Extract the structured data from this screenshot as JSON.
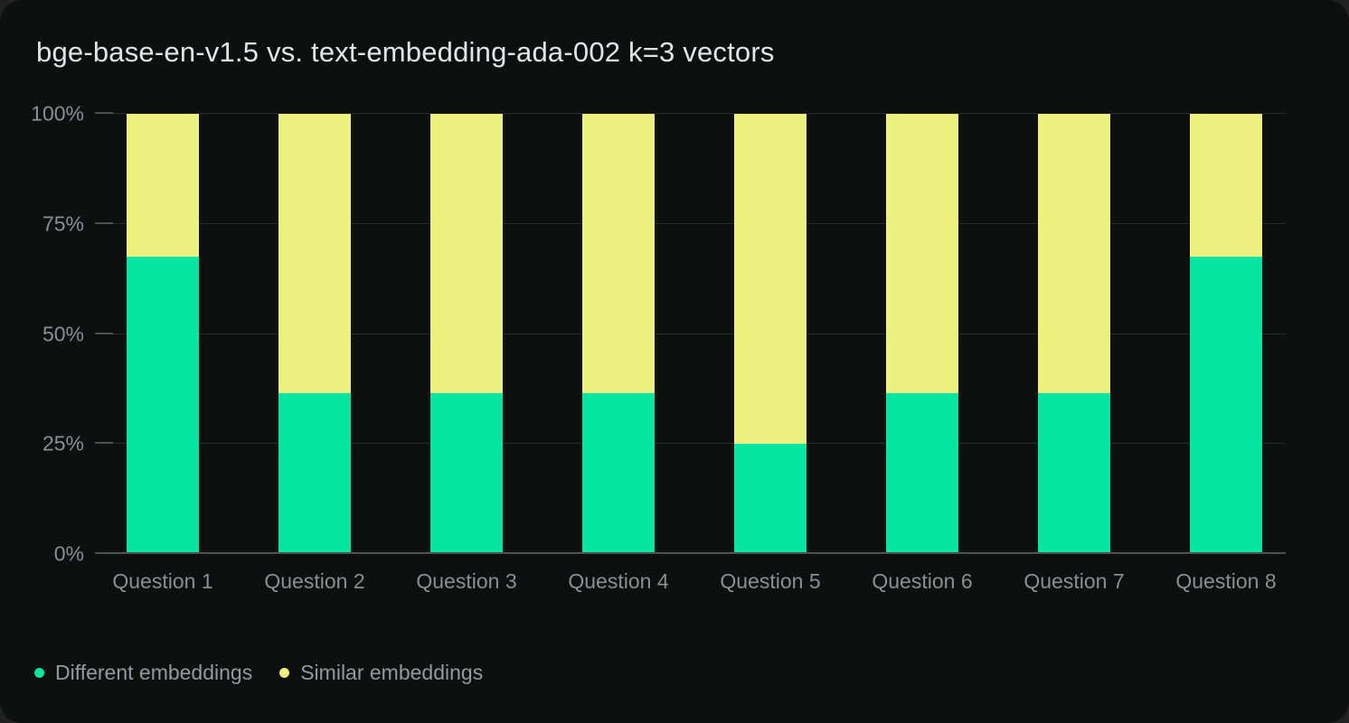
{
  "title": "bge-base-en-v1.5 vs. text-embedding-ada-002 k=3 vectors",
  "chart_data": {
    "type": "bar",
    "stacked": true,
    "units": "percent",
    "title": "bge-base-en-v1.5 vs. text-embedding-ada-002 k=3 vectors",
    "categories": [
      "Question 1",
      "Question 2",
      "Question 3",
      "Question 4",
      "Question 5",
      "Question 6",
      "Question 7",
      "Question 8"
    ],
    "series": [
      {
        "name": "Different embeddings",
        "color": "#05e6a0",
        "values": [
          67.5,
          36.5,
          36.5,
          36.5,
          25,
          36.5,
          36.5,
          67.5
        ]
      },
      {
        "name": "Similar embeddings",
        "color": "#edf07c",
        "values": [
          32.5,
          63.5,
          63.5,
          63.5,
          75,
          63.5,
          63.5,
          32.5
        ]
      }
    ],
    "xlabel": "",
    "ylabel": "",
    "ylim": [
      0,
      100
    ],
    "y_ticks": [
      {
        "label": "0%",
        "value": 0
      },
      {
        "label": "25%",
        "value": 25
      },
      {
        "label": "50%",
        "value": 50
      },
      {
        "label": "75%",
        "value": 75
      },
      {
        "label": "100%",
        "value": 100
      }
    ],
    "grid": true,
    "legend_position": "bottom-left"
  },
  "colors": {
    "page_bg": "#212121",
    "card_bg": "#0e0f0f",
    "title": "#e4e4e6",
    "axis_label": "#8d8d92",
    "legend_label": "#98989c",
    "gridline": "#29292b",
    "axis_line": "#4e5052",
    "different": "#05e6a0",
    "similar": "#edf07c"
  }
}
